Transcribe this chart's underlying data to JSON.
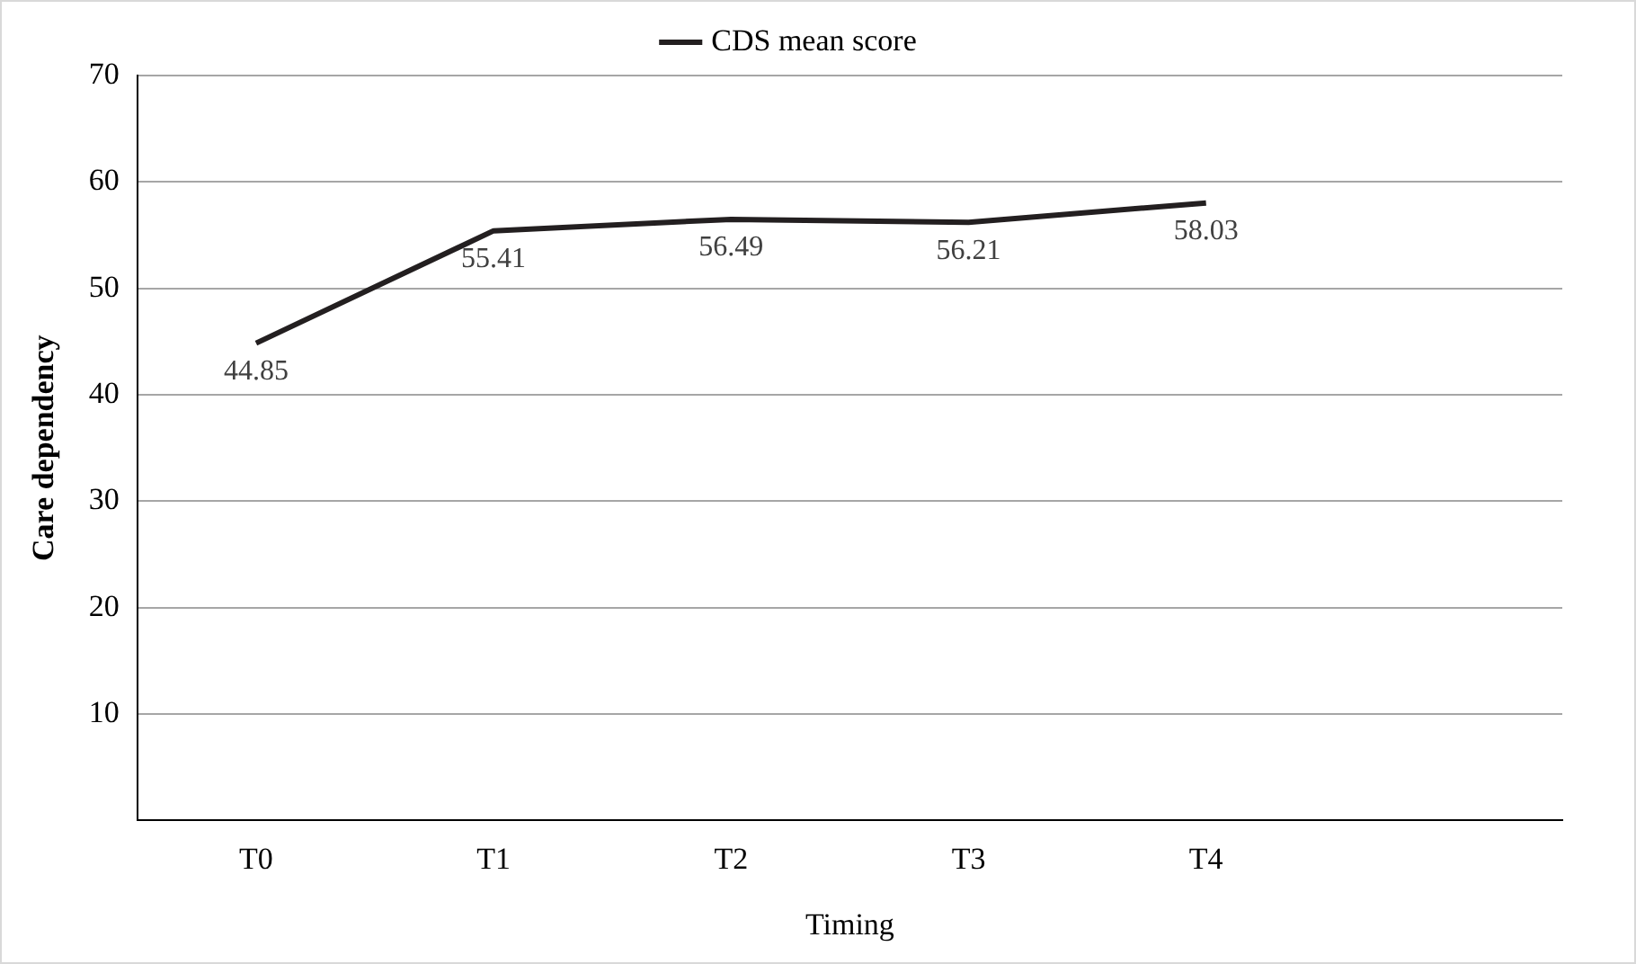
{
  "chart_data": {
    "type": "line",
    "xlabel": "Timing",
    "ylabel": "Care dependency",
    "categories": [
      "T0",
      "T1",
      "T2",
      "T3",
      "T4",
      null
    ],
    "series": [
      {
        "name": "CDS mean score",
        "color": "#231f20",
        "values": [
          44.85,
          55.41,
          56.49,
          56.21,
          58.03,
          null
        ]
      }
    ],
    "ylim": [
      0,
      70
    ],
    "yticks": [
      {
        "value": 0,
        "label": null
      },
      10,
      20,
      30,
      40,
      50,
      60,
      70
    ],
    "grid": "y",
    "legend": "top",
    "marker": "none",
    "line_style": "solid",
    "data_labels": true
  }
}
